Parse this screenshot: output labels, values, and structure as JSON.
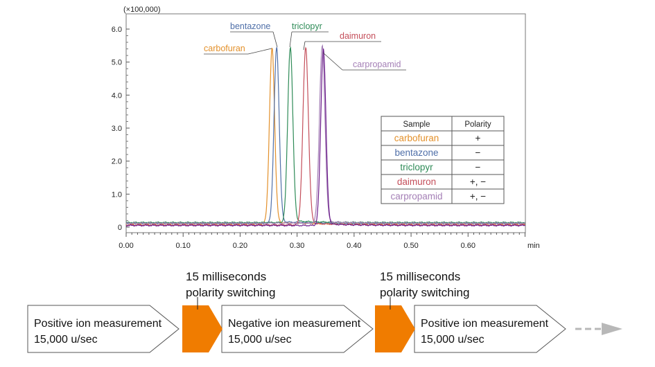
{
  "chart_data": {
    "type": "line",
    "title": "",
    "xlabel": "",
    "ylabel": "",
    "x_unit": "min",
    "y_multiplier": "(×100,000)",
    "xlim": [
      0.0,
      0.7
    ],
    "ylim": [
      0,
      6.0
    ],
    "x_ticks": [
      "0.00",
      "0.10",
      "0.20",
      "0.30",
      "0.40",
      "0.50",
      "0.60"
    ],
    "y_ticks": [
      "0",
      "1.0",
      "2.0",
      "3.0",
      "4.0",
      "5.0",
      "6.0"
    ],
    "grid": false,
    "series": [
      {
        "name": "carbofuran",
        "color": "#E3902A",
        "peak_x": 0.256,
        "peak_y": 5.3,
        "width": 0.0045,
        "baseline": 0.1
      },
      {
        "name": "bentazone",
        "color": "#4F6FA8",
        "peak_x": 0.264,
        "peak_y": 5.3,
        "width": 0.0045,
        "baseline": 0.12
      },
      {
        "name": "triclopyr",
        "color": "#2E8B57",
        "peak_x": 0.288,
        "peak_y": 5.3,
        "width": 0.0045,
        "baseline": 0.14
      },
      {
        "name": "daimuron",
        "color": "#C44E5A",
        "peak_x": 0.315,
        "peak_y": 5.35,
        "width": 0.0048,
        "baseline": 0.07
      },
      {
        "name": "carpropamid",
        "color": "#A47FB6",
        "peak_x": 0.344,
        "peak_y": 5.35,
        "width": 0.0048,
        "baseline": 0.12
      },
      {
        "name": "",
        "color": "#6A1A8A",
        "peak_x": 0.346,
        "peak_y": 5.32,
        "width": 0.0045,
        "baseline": 0.05
      }
    ],
    "peak_labels": [
      {
        "text": "bentazone",
        "color": "#4F6FA8"
      },
      {
        "text": "triclopyr",
        "color": "#2E8B57"
      },
      {
        "text": "daimuron",
        "color": "#C44E5A"
      },
      {
        "text": "carbofuran",
        "color": "#E3902A"
      },
      {
        "text": "carpropamid",
        "color": "#A47FB6"
      }
    ],
    "table": {
      "headers": [
        "Sample",
        "Polarity"
      ],
      "rows": [
        {
          "sample": "carbofuran",
          "polarity": "+",
          "color": "#E3902A"
        },
        {
          "sample": "bentazone",
          "polarity": "−",
          "color": "#4F6FA8"
        },
        {
          "sample": "triclopyr",
          "polarity": "−",
          "color": "#2E8B57"
        },
        {
          "sample": "daimuron",
          "polarity": "+, −",
          "color": "#C44E5A"
        },
        {
          "sample": "carpropamid",
          "polarity": "+, −",
          "color": "#A47FB6"
        }
      ]
    }
  },
  "flow": {
    "steps": [
      {
        "line1": "Positive ion measurement",
        "line2": "15,000 u/sec"
      },
      {
        "line1": "Negative ion measurement",
        "line2": "15,000 u/sec"
      },
      {
        "line1": "Positive ion measurement",
        "line2": "15,000 u/sec"
      }
    ],
    "switches": [
      {
        "line1": "15 milliseconds",
        "line2": "polarity switching"
      },
      {
        "line1": "15 milliseconds",
        "line2": "polarity switching"
      }
    ],
    "switch_color": "#F07C00",
    "continue_color": "#B8B8B8"
  }
}
